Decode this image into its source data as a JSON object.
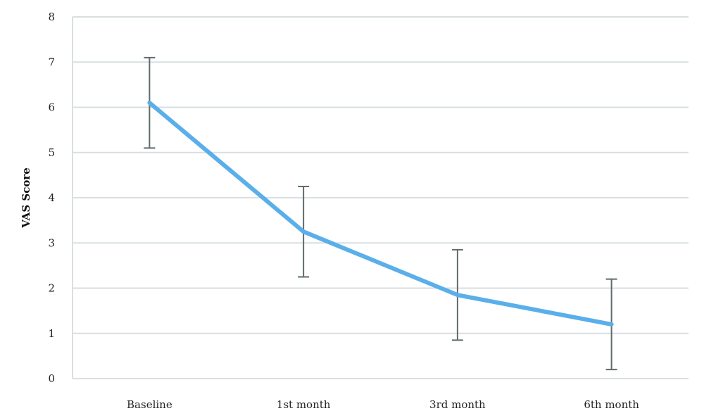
{
  "chart_data": {
    "type": "line",
    "title": "",
    "xlabel": "",
    "ylabel": "VAS Score",
    "categories": [
      "Baseline",
      "1st month",
      "3rd month",
      "6th month"
    ],
    "series": [
      {
        "values": [
          6.1,
          3.25,
          1.85,
          1.2
        ],
        "error_upper": [
          7.1,
          4.25,
          2.85,
          2.2
        ],
        "error_lower": [
          5.1,
          2.25,
          0.85,
          0.2
        ]
      }
    ],
    "ylim": [
      0,
      8
    ],
    "yticks": [
      0,
      1,
      2,
      3,
      4,
      5,
      6,
      7,
      8
    ],
    "grid": true,
    "colors": {
      "line": "#5aafea",
      "error_bar": "#5f6b6d",
      "grid": "#d9dfe1"
    }
  }
}
